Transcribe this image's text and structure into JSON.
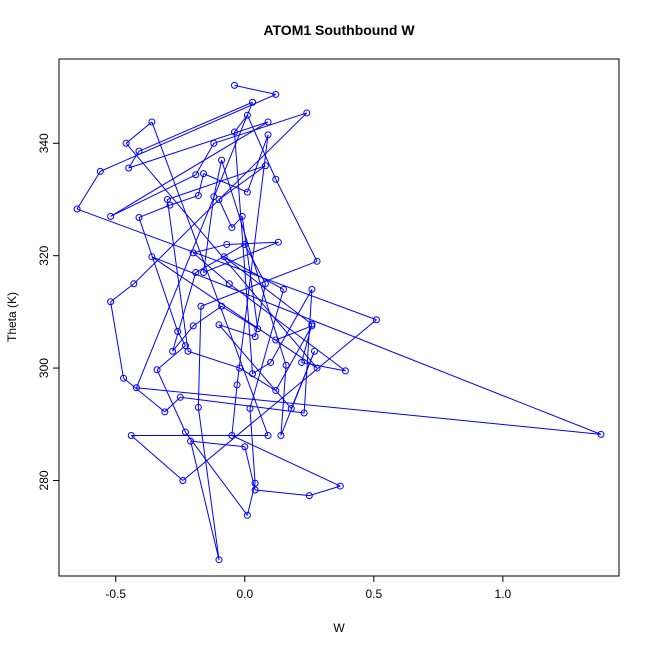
{
  "chart_data": {
    "type": "line",
    "title": "ATOM1 Southbound W",
    "xlabel": "W",
    "ylabel": "Theta (K)",
    "xlim": [
      -0.72,
      1.45
    ],
    "ylim": [
      263,
      355
    ],
    "x_ticks": [
      -0.5,
      0.0,
      0.5,
      1.0
    ],
    "x_tick_labels": [
      "-0.5",
      "0.0",
      "0.5",
      "1.0"
    ],
    "y_ticks": [
      280,
      300,
      320,
      340
    ],
    "y_tick_labels": [
      "280",
      "300",
      "320",
      "340"
    ],
    "grid": false,
    "legend": "none",
    "marker": "open-circle",
    "series": [
      {
        "color": "#0000ff",
        "points": [
          [
            -0.04,
            350.3
          ],
          [
            0.12,
            348.7
          ],
          [
            -0.56,
            335.0
          ],
          [
            -0.65,
            328.3
          ],
          [
            0.51,
            308.6
          ],
          [
            -0.24,
            280.0
          ],
          [
            -0.44,
            288.0
          ],
          [
            0.09,
            288.0
          ],
          [
            -0.36,
            343.8
          ],
          [
            -0.46,
            340.0
          ],
          [
            0.28,
            300.0
          ],
          [
            -0.36,
            319.8
          ],
          [
            1.38,
            288.2
          ],
          [
            -0.42,
            296.5
          ],
          [
            0.03,
            347.3
          ],
          [
            -0.41,
            338.6
          ],
          [
            -0.45,
            335.6
          ],
          [
            0.09,
            343.8
          ],
          [
            -0.52,
            327.0
          ],
          [
            -0.19,
            334.4
          ],
          [
            -0.12,
            340.0
          ],
          [
            0.24,
            345.4
          ],
          [
            -0.43,
            315.0
          ],
          [
            -0.52,
            311.8
          ],
          [
            -0.47,
            298.2
          ],
          [
            -0.31,
            292.2
          ],
          [
            -0.25,
            294.8
          ],
          [
            0.23,
            292.0
          ],
          [
            0.26,
            314.0
          ],
          [
            0.1,
            301.0
          ],
          [
            0.03,
            299.0
          ],
          [
            -0.04,
            342.0
          ],
          [
            0.01,
            345.0
          ],
          [
            0.12,
            333.6
          ],
          [
            0.28,
            319.0
          ],
          [
            -0.17,
            311.0
          ],
          [
            -0.18,
            293.0
          ],
          [
            -0.1,
            265.9
          ],
          [
            -0.21,
            287.0
          ],
          [
            0.0,
            286.0
          ],
          [
            0.04,
            278.3
          ],
          [
            0.25,
            277.3
          ],
          [
            0.37,
            279.0
          ],
          [
            -0.05,
            288.0
          ],
          [
            -0.03,
            297.0
          ],
          [
            0.09,
            341.5
          ],
          [
            0.01,
            331.3
          ],
          [
            -0.16,
            334.6
          ],
          [
            -0.18,
            330.7
          ],
          [
            -0.29,
            329.0
          ],
          [
            -0.41,
            326.8
          ],
          [
            -0.26,
            306.5
          ],
          [
            -0.23,
            304.0
          ],
          [
            -0.34,
            299.7
          ],
          [
            -0.23,
            288.6
          ],
          [
            0.01,
            273.8
          ],
          [
            0.04,
            279.5
          ],
          [
            0.02,
            292.8
          ],
          [
            0.15,
            314.0
          ],
          [
            -0.08,
            319.8
          ],
          [
            0.26,
            307.8
          ],
          [
            0.22,
            301.0
          ],
          [
            0.39,
            299.5
          ],
          [
            -0.06,
            315.0
          ],
          [
            -0.2,
            320.5
          ],
          [
            -0.07,
            322.0
          ],
          [
            0.13,
            322.4
          ],
          [
            -0.16,
            317.0
          ],
          [
            -0.12,
            330.5
          ],
          [
            -0.09,
            337.0
          ],
          [
            0.16,
            300.5
          ],
          [
            0.14,
            288.0
          ],
          [
            0.27,
            303.0
          ],
          [
            0.18,
            292.8
          ],
          [
            -0.1,
            307.7
          ],
          [
            0.04,
            305.6
          ],
          [
            0.08,
            315.0
          ],
          [
            0.0,
            322.0
          ],
          [
            -0.19,
            317.0
          ],
          [
            -0.28,
            303.0
          ],
          [
            -0.2,
            307.5
          ],
          [
            -0.09,
            311.0
          ],
          [
            0.05,
            307.0
          ],
          [
            -0.01,
            327.0
          ],
          [
            -0.05,
            325.0
          ],
          [
            -0.1,
            330.0
          ],
          [
            0.08,
            336.0
          ],
          [
            -0.3,
            330.0
          ],
          [
            -0.22,
            303.0
          ],
          [
            -0.02,
            300.0
          ],
          [
            0.12,
            296.0
          ],
          [
            0.26,
            307.5
          ],
          [
            0.12,
            305.0
          ]
        ]
      }
    ]
  }
}
